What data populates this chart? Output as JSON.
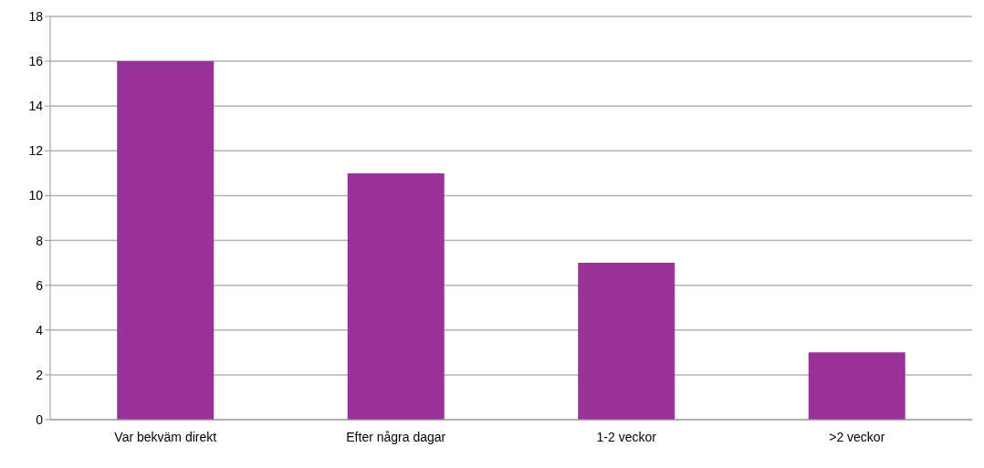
{
  "chart_data": {
    "type": "bar",
    "categories": [
      "Var bekväm direkt",
      "Efter några dagar",
      "1-2 veckor",
      ">2 veckor"
    ],
    "values": [
      16,
      11,
      7,
      3
    ],
    "color": "#993399",
    "ylim": [
      0,
      18
    ],
    "yticks": [
      0,
      2,
      4,
      6,
      8,
      10,
      12,
      14,
      16,
      18
    ],
    "grid": "y"
  }
}
